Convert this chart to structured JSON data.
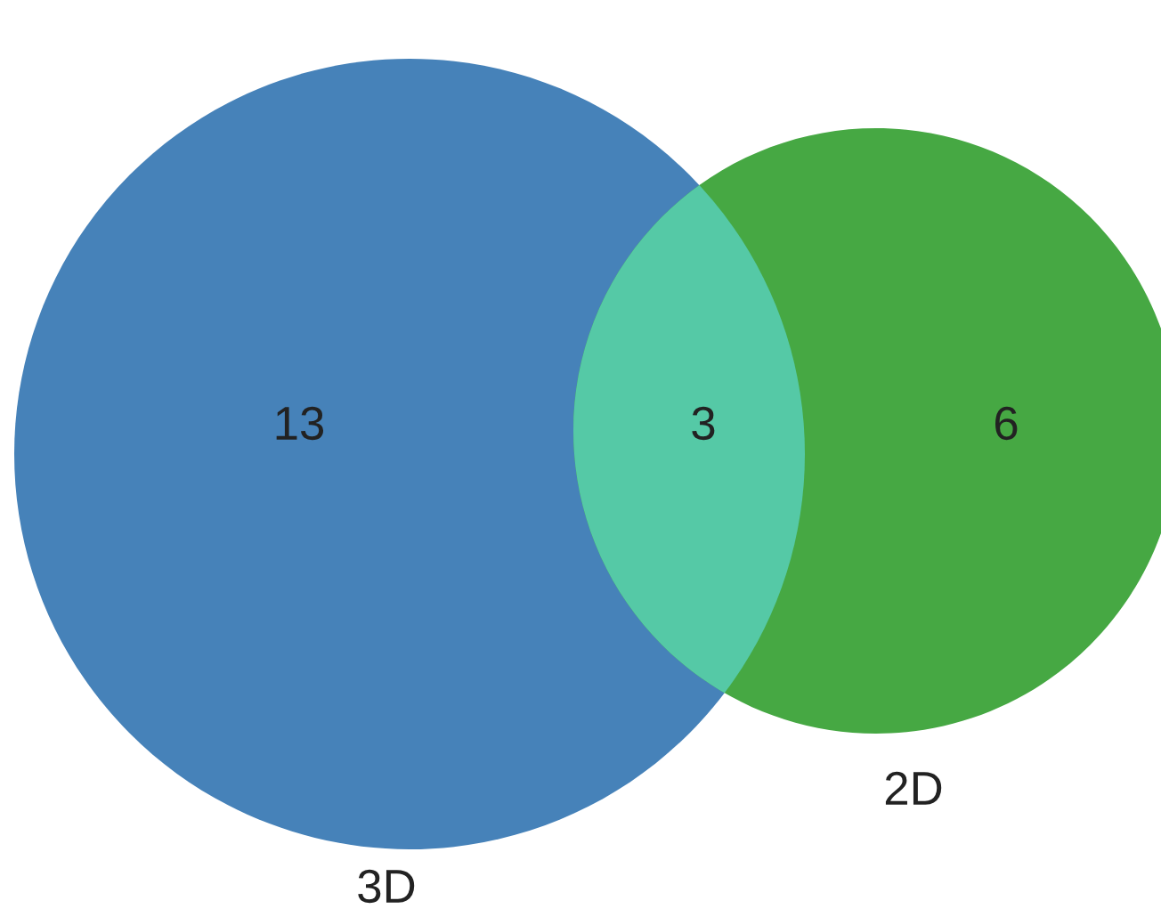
{
  "chart_data": {
    "type": "other",
    "categories": [
      "3D",
      null,
      "2D"
    ],
    "values": [
      13,
      3,
      6
    ],
    "colors": [
      "#4682b9",
      "#55c9a6",
      "#46a843"
    ],
    "data_labels": true
  }
}
